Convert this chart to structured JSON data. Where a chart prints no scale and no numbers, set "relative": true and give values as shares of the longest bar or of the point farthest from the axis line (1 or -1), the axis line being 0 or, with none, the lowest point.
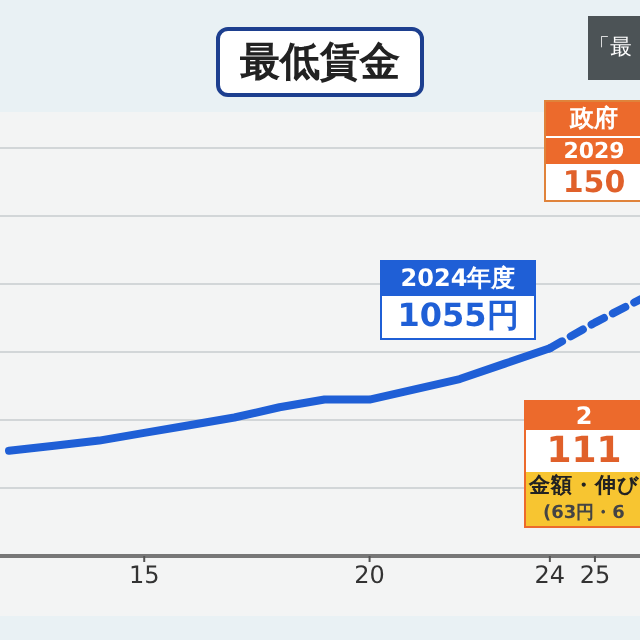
{
  "chart_data": {
    "type": "line",
    "title": "最低賃金",
    "relative": true,
    "x": [
      12,
      13,
      14,
      15,
      16,
      17,
      18,
      19,
      20,
      21,
      22,
      23,
      24
    ],
    "series": [
      {
        "color": "#1f5fd6",
        "values": [
          0.41,
          0.43,
          0.45,
          0.48,
          0.51,
          0.54,
          0.58,
          0.61,
          0.61,
          0.65,
          0.69,
          0.75,
          0.81
        ]
      },
      {
        "color": "#1f5fd6",
        "line_style": "dashed",
        "x": [
          24,
          25,
          26
        ],
        "values": [
          0.81,
          0.91,
          1
        ]
      }
    ],
    "xlim": [
      11.8,
      26
    ],
    "xticks": [
      15,
      20,
      24,
      25
    ],
    "grid": "y",
    "marker": "none",
    "line_style": "solid",
    "annotations": [
      "「最",
      "政府",
      "2029",
      "150",
      "2024年度",
      "1055円",
      "2",
      "111",
      "金額・伸び",
      "(63円・6"
    ]
  }
}
